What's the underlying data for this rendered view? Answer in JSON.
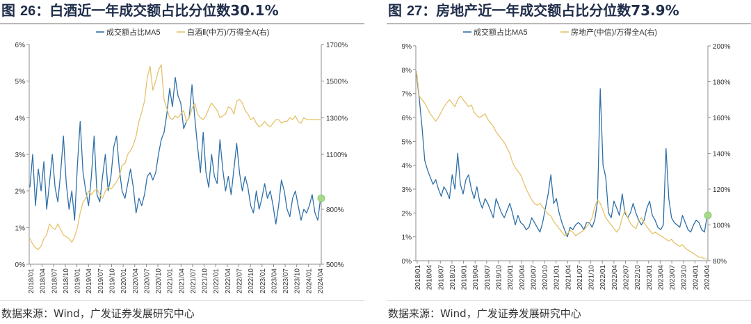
{
  "colors": {
    "blue": "#2e6fa8",
    "gold": "#e6c26a",
    "green_marker": "#a6d98a",
    "title": "#1f2d4a"
  },
  "panels": [
    {
      "title_prefix": "图 ",
      "title_number": "26",
      "title_text": "：白酒近一年成交额占比分位数30.1%",
      "source": "数据来源：Wind，广发证券发展研究中心",
      "chart_data": {
        "type": "line",
        "legend_position": "top",
        "grid": false,
        "x_labels": [
          "2018/01",
          "2018/04",
          "2018/07",
          "2018/10",
          "2019/01",
          "2019/04",
          "2019/07",
          "2019/10",
          "2020/01",
          "2020/04",
          "2020/07",
          "2020/10",
          "2021/01",
          "2021/04",
          "2021/07",
          "2021/10",
          "2022/01",
          "2022/04",
          "2022/07",
          "2022/10",
          "2023/01",
          "2023/04",
          "2023/07",
          "2023/10",
          "2024/01",
          "2024/04"
        ],
        "y_left": {
          "ticks": [
            "0%",
            "1%",
            "2%",
            "3%",
            "4%",
            "5%",
            "6%"
          ],
          "min": 0,
          "max": 6
        },
        "y_right": {
          "ticks": [
            "500%",
            "800%",
            "1100%",
            "1300%",
            "1500%",
            "1700%"
          ],
          "values": [
            500,
            800,
            1100,
            1300,
            1500,
            1700
          ],
          "min": 500,
          "max": 1700
        },
        "series": [
          {
            "name": "成交额占比MA5",
            "axis": "left",
            "color": "#2e6fa8",
            "values": [
              2.1,
              3.0,
              1.6,
              2.6,
              2.0,
              2.8,
              1.5,
              2.2,
              3.0,
              2.1,
              1.7,
              2.5,
              3.5,
              2.2,
              1.5,
              2.0,
              1.2,
              2.7,
              3.9,
              2.5,
              2.0,
              1.6,
              2.4,
              3.5,
              1.9,
              1.7,
              2.4,
              3.0,
              2.0,
              2.4,
              3.2,
              3.5,
              2.6,
              2.0,
              1.8,
              2.2,
              2.6,
              2.1,
              1.4,
              1.8,
              1.6,
              1.9,
              2.4,
              2.5,
              2.3,
              2.5,
              3.0,
              3.4,
              3.6,
              4.1,
              4.8,
              4.3,
              5.1,
              4.6,
              4.4,
              3.7,
              3.9,
              4.0,
              4.9,
              4.0,
              3.2,
              2.5,
              3.6,
              2.5,
              2.1,
              3.0,
              2.4,
              2.2,
              3.4,
              2.6,
              2.0,
              2.4,
              1.9,
              2.6,
              3.3,
              2.5,
              2.0,
              2.4,
              2.1,
              1.6,
              1.4,
              2.0,
              1.5,
              1.8,
              2.2,
              1.8,
              2.0,
              1.6,
              1.1,
              1.6,
              2.3,
              2.0,
              1.5,
              1.3,
              1.8,
              2.0,
              1.6,
              1.2,
              1.5,
              1.4,
              1.6,
              1.9,
              1.4,
              1.2,
              1.8
            ]
          },
          {
            "name": "白酒Ⅱ(中万)/万得全A(右)",
            "axis": "right",
            "color": "#e6c26a",
            "values": [
              640,
              610,
              590,
              580,
              600,
              640,
              660,
              720,
              700,
              690,
              720,
              690,
              660,
              650,
              640,
              620,
              650,
              700,
              780,
              840,
              860,
              900,
              880,
              900,
              910,
              880,
              860,
              900,
              920,
              910,
              930,
              950,
              980,
              1040,
              1050,
              1100,
              1120,
              1150,
              1200,
              1280,
              1330,
              1390,
              1520,
              1580,
              1450,
              1500,
              1560,
              1590,
              1400,
              1350,
              1300,
              1290,
              1310,
              1300,
              1320,
              1340,
              1280,
              1300,
              1350,
              1380,
              1320,
              1300,
              1290,
              1310,
              1350,
              1380,
              1360,
              1340,
              1300,
              1310,
              1320,
              1360,
              1350,
              1320,
              1390,
              1400,
              1380,
              1340,
              1320,
              1290,
              1300,
              1270,
              1250,
              1260,
              1280,
              1260,
              1250,
              1270,
              1290,
              1290,
              1270,
              1280,
              1280,
              1300,
              1290,
              1310,
              1280,
              1270,
              1300,
              1290,
              1290,
              1290,
              1290,
              1290,
              1290
            ]
          }
        ]
      }
    },
    {
      "title_prefix": "图 ",
      "title_number": "27",
      "title_text": "：房地产近一年成交额占比分位数73.9%",
      "source": "数据来源：Wind，广发证券发展研究中心",
      "chart_data": {
        "type": "line",
        "legend_position": "top",
        "grid": false,
        "x_labels": [
          "2018/01",
          "2018/04",
          "2018/07",
          "2018/10",
          "2019/01",
          "2019/04",
          "2019/07",
          "2019/10",
          "2020/01",
          "2020/04",
          "2020/07",
          "2020/10",
          "2021/01",
          "2021/04",
          "2021/07",
          "2021/10",
          "2022/01",
          "2022/04",
          "2022/07",
          "2022/10",
          "2023/01",
          "2023/04",
          "2023/07",
          "2023/10",
          "2024/01",
          "2024/04"
        ],
        "y_left": {
          "ticks": [
            "0%",
            "1%",
            "2%",
            "3%",
            "4%",
            "5%",
            "6%",
            "7%",
            "8%",
            "9%"
          ],
          "min": 0,
          "max": 9
        },
        "y_right": {
          "ticks": [
            "80%",
            "100%",
            "120%",
            "140%",
            "160%",
            "180%",
            "200%"
          ],
          "values": [
            80,
            100,
            120,
            140,
            160,
            180,
            200
          ],
          "min": 80,
          "max": 200
        },
        "series": [
          {
            "name": "成交额占比MA5",
            "axis": "left",
            "color": "#2e6fa8",
            "values": [
              7.8,
              6.8,
              5.6,
              4.2,
              3.8,
              3.5,
              3.2,
              3.4,
              3.0,
              2.7,
              3.1,
              2.9,
              2.6,
              3.6,
              3.0,
              4.5,
              3.2,
              2.8,
              3.4,
              3.6,
              3.0,
              2.6,
              3.1,
              2.5,
              2.2,
              2.6,
              2.4,
              2.1,
              1.8,
              2.6,
              2.3,
              2.0,
              1.8,
              2.1,
              2.4,
              2.0,
              1.5,
              1.9,
              1.6,
              1.5,
              1.3,
              1.4,
              1.8,
              1.6,
              1.4,
              1.2,
              1.6,
              2.2,
              2.8,
              3.6,
              2.4,
              2.6,
              2.0,
              1.6,
              1.3,
              1.0,
              1.4,
              1.3,
              1.5,
              1.6,
              1.5,
              1.3,
              1.6,
              1.6,
              1.4,
              1.7,
              2.5,
              7.2,
              4.0,
              3.5,
              2.0,
              1.8,
              2.5,
              2.2,
              1.9,
              2.8,
              2.0,
              1.8,
              2.0,
              2.4,
              2.0,
              1.7,
              1.5,
              1.7,
              2.2,
              2.5,
              1.9,
              1.7,
              1.4,
              1.3,
              1.5,
              4.7,
              2.6,
              1.8,
              1.6,
              1.5,
              1.4,
              1.9,
              1.6,
              1.3,
              1.2,
              1.5,
              1.7,
              1.6,
              1.3,
              1.2,
              1.9
            ]
          },
          {
            "name": "房地产(中信)/万得全A(右)",
            "axis": "right",
            "color": "#e6c26a",
            "values": [
              186,
              172,
              170,
              168,
              165,
              162,
              160,
              158,
              160,
              163,
              166,
              168,
              170,
              168,
              166,
              170,
              172,
              170,
              168,
              166,
              167,
              163,
              161,
              160,
              161,
              162,
              159,
              157,
              155,
              152,
              150,
              148,
              146,
              143,
              140,
              135,
              132,
              130,
              128,
              124,
              120,
              117,
              114,
              112,
              111,
              112,
              110,
              108,
              106,
              105,
              102,
              100,
              98,
              96,
              94,
              95,
              97,
              96,
              94,
              95,
              96,
              97,
              99,
              101,
              104,
              110,
              114,
              112,
              108,
              104,
              102,
              100,
              98,
              96,
              98,
              104,
              108,
              104,
              101,
              99,
              98,
              102,
              104,
              101,
              99,
              97,
              95,
              96,
              95,
              94,
              93,
              92,
              91,
              92,
              90,
              89,
              88,
              89,
              87,
              86,
              85,
              84,
              83,
              82,
              82,
              81,
              81
            ]
          }
        ]
      }
    }
  ]
}
